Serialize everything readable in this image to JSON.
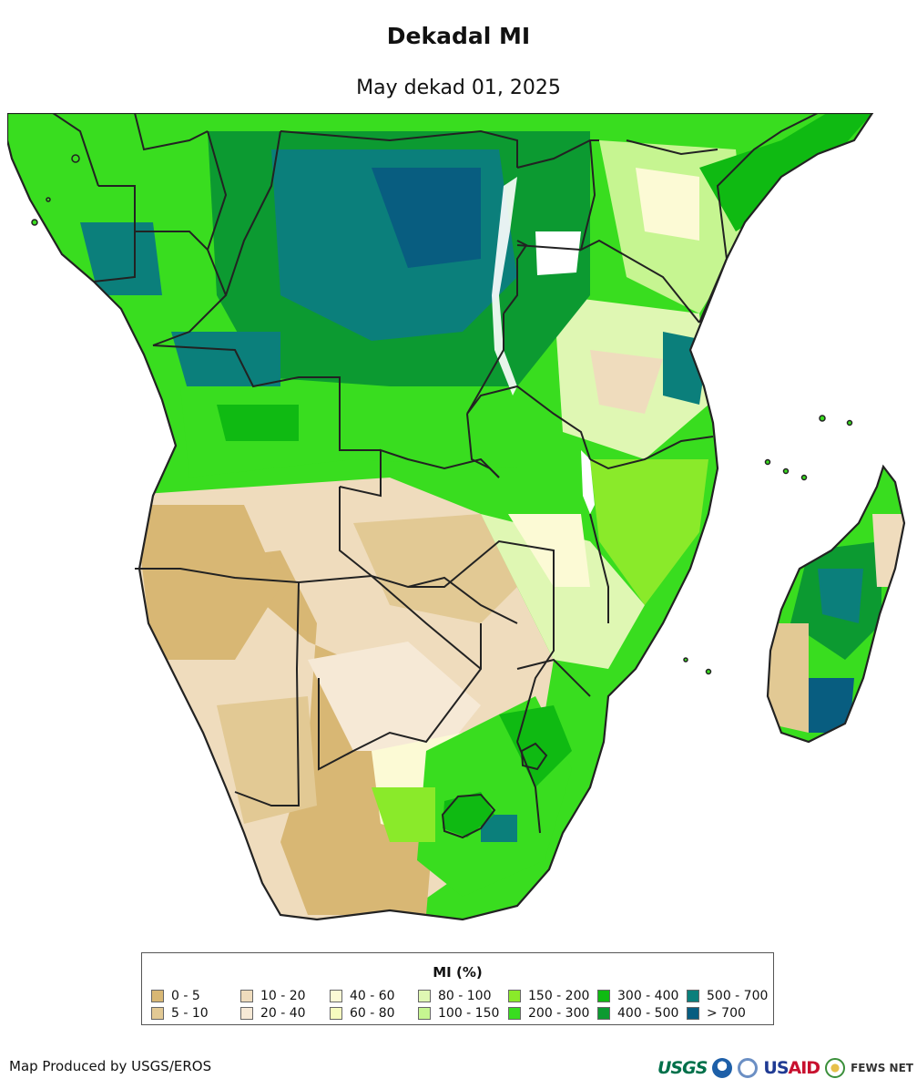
{
  "title": "Dekadal MI",
  "subtitle": "May dekad 01, 2025",
  "legend": {
    "title": "MI (%)",
    "items": [
      {
        "label": "0 - 5",
        "color": "#d8b774"
      },
      {
        "label": "5 - 10",
        "color": "#e2c994"
      },
      {
        "label": "10 - 20",
        "color": "#efdcbd"
      },
      {
        "label": "20 - 40",
        "color": "#f6e9d6"
      },
      {
        "label": "40 - 60",
        "color": "#fcfad5"
      },
      {
        "label": "60 - 80",
        "color": "#f6fcbf"
      },
      {
        "label": "80 - 100",
        "color": "#dff7b3"
      },
      {
        "label": "100 - 150",
        "color": "#c6f591"
      },
      {
        "label": "150 - 200",
        "color": "#8aea2a"
      },
      {
        "label": "200 - 300",
        "color": "#39dd1f"
      },
      {
        "label": "300 - 400",
        "color": "#0fba12"
      },
      {
        "label": "400 - 500",
        "color": "#0c9a31"
      },
      {
        "label": "500 - 700",
        "color": "#0b7f7b"
      },
      {
        "label": "> 700",
        "color": "#085d80"
      }
    ]
  },
  "credit": "Map Produced by USGS/EROS",
  "logos": {
    "usgs": "USGS",
    "usaid_us": "US",
    "usaid_aid": "AID",
    "fews": "FEWS NET",
    "noaa_color": "#1d5fa8",
    "dos_color": "#6b8fc4"
  }
}
